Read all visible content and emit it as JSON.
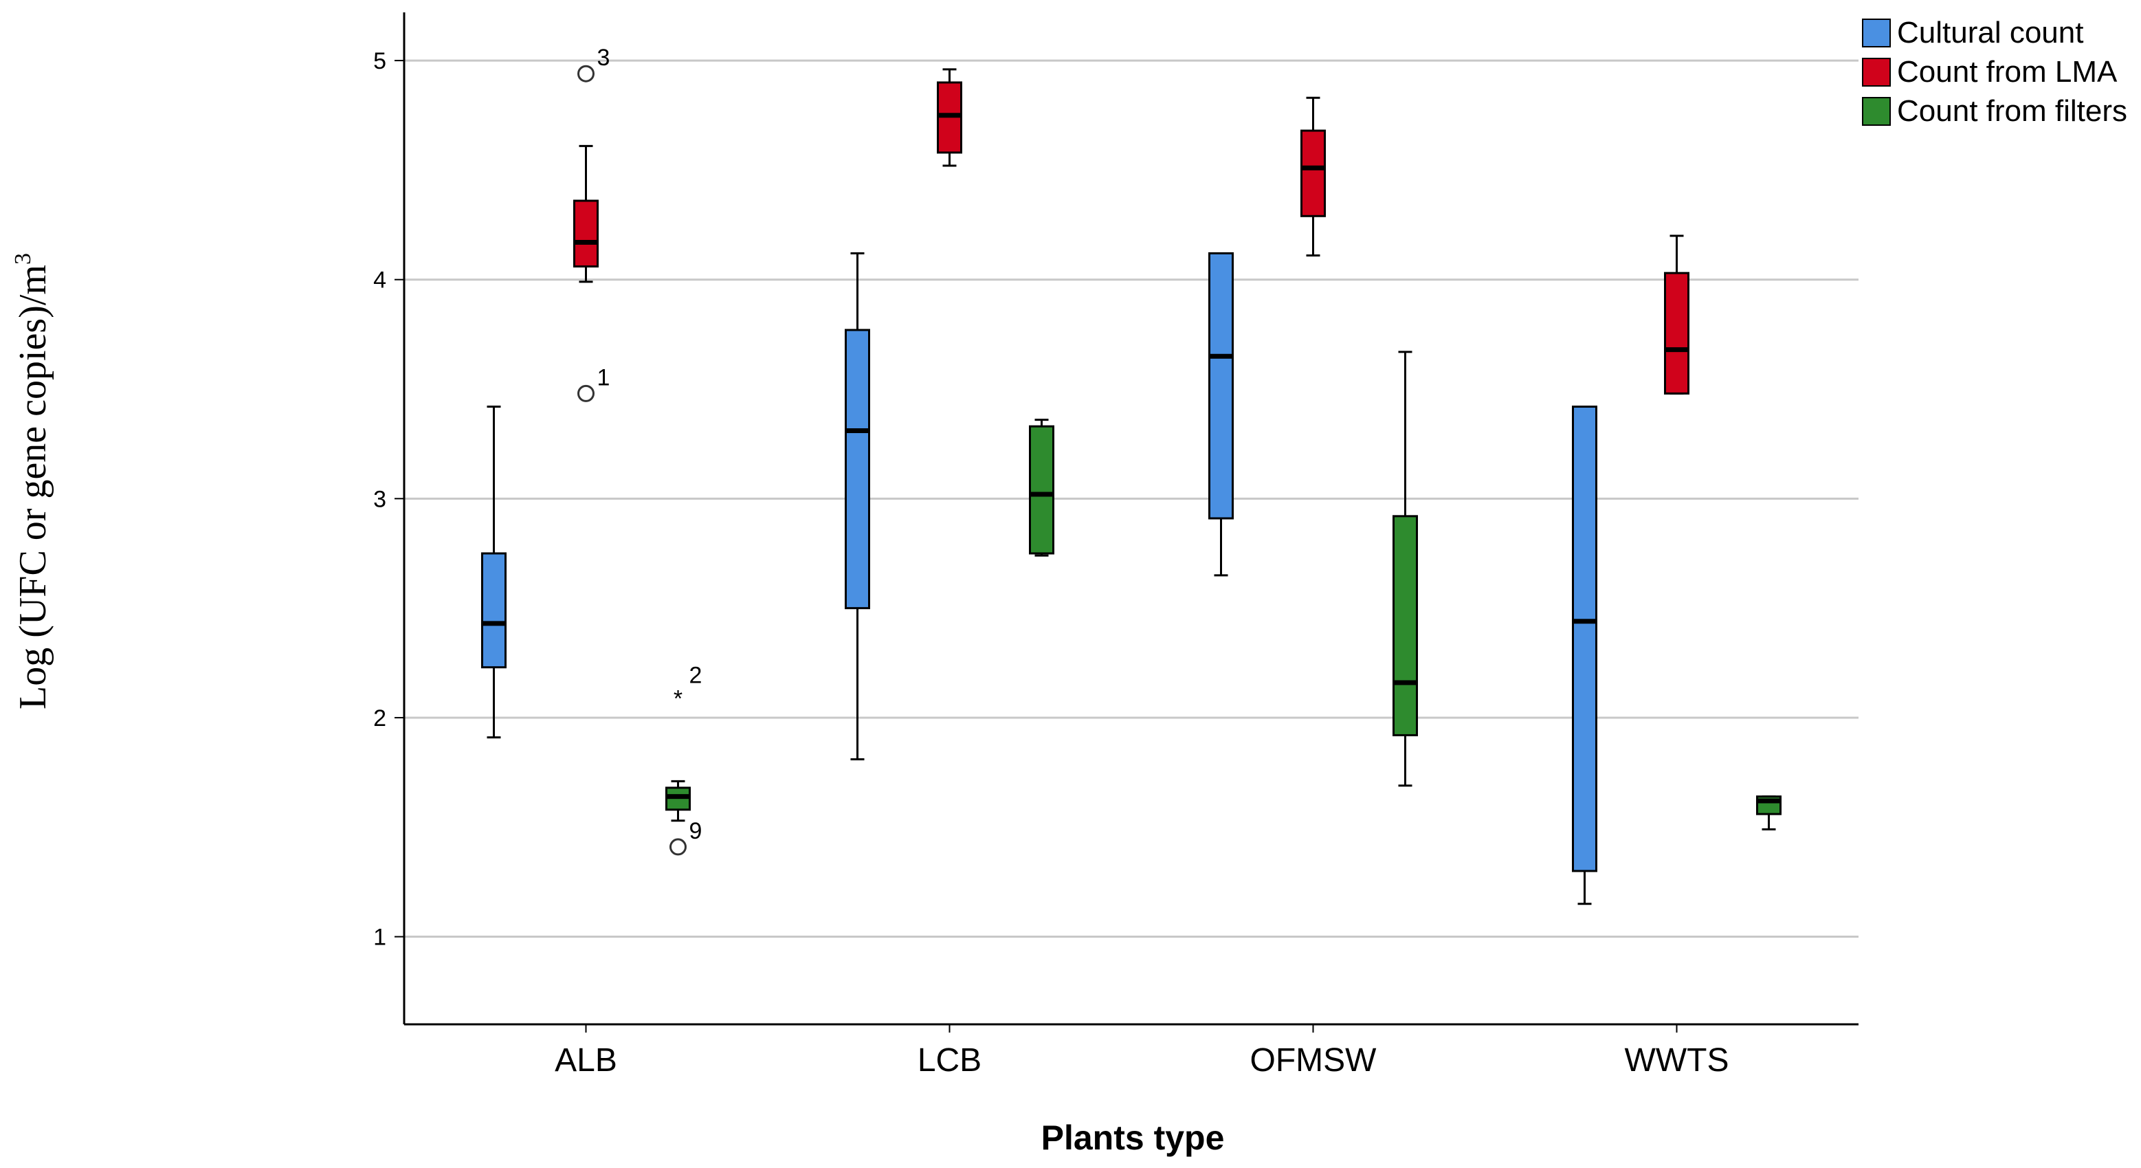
{
  "chart_data": {
    "type": "boxplot",
    "title": "",
    "xlabel": "Plants type",
    "ylabel": "Log (UFC or gene copies)/m",
    "ylabel_superscript": "3",
    "ylim": [
      0.6,
      5.22
    ],
    "yticks": [
      "1",
      "2",
      "3",
      "4",
      "5"
    ],
    "grid": true,
    "legend_position": "top-right",
    "categories": [
      "ALB",
      "LCB",
      "OFMSW",
      "WWTS"
    ],
    "series": [
      {
        "name": "Cultural count",
        "color": "#4a90e2",
        "boxes": [
          {
            "whisker_low": 1.91,
            "q1": 2.23,
            "median": 2.43,
            "q3": 2.75,
            "whisker_high": 3.42
          },
          {
            "whisker_low": 1.81,
            "q1": 2.5,
            "median": 3.31,
            "q3": 3.77,
            "whisker_high": 4.12
          },
          {
            "whisker_low": 2.65,
            "q1": 2.91,
            "median": 3.65,
            "q3": 4.12,
            "whisker_high": 4.12
          },
          {
            "whisker_low": 1.15,
            "q1": 1.3,
            "median": 2.44,
            "q3": 3.42,
            "whisker_high": 3.42
          }
        ]
      },
      {
        "name": "Count from LMA",
        "color": "#d0021b",
        "boxes": [
          {
            "whisker_low": 3.99,
            "q1": 4.06,
            "median": 4.17,
            "q3": 4.36,
            "whisker_high": 4.61
          },
          {
            "whisker_low": 4.52,
            "q1": 4.58,
            "median": 4.75,
            "q3": 4.9,
            "whisker_high": 4.96
          },
          {
            "whisker_low": 4.11,
            "q1": 4.29,
            "median": 4.51,
            "q3": 4.68,
            "whisker_high": 4.83
          },
          {
            "whisker_low": 3.48,
            "q1": 3.48,
            "median": 3.68,
            "q3": 4.03,
            "whisker_high": 4.2
          }
        ]
      },
      {
        "name": "Count from filters",
        "color": "#2e8b2e",
        "boxes": [
          {
            "whisker_low": 1.53,
            "q1": 1.58,
            "median": 1.64,
            "q3": 1.68,
            "whisker_high": 1.71
          },
          {
            "whisker_low": 2.74,
            "q1": 2.75,
            "median": 3.02,
            "q3": 3.33,
            "whisker_high": 3.36
          },
          {
            "whisker_low": 1.69,
            "q1": 1.92,
            "median": 2.16,
            "q3": 2.92,
            "whisker_high": 3.67
          },
          {
            "whisker_low": 1.49,
            "q1": 1.56,
            "median": 1.62,
            "q3": 1.64,
            "whisker_high": 1.64
          }
        ]
      }
    ],
    "outliers": [
      {
        "category": "ALB",
        "series": "Count from LMA",
        "value": 4.94,
        "marker": "circle",
        "label": "3"
      },
      {
        "category": "ALB",
        "series": "Count from LMA",
        "value": 3.48,
        "marker": "circle",
        "label": "1"
      },
      {
        "category": "ALB",
        "series": "Count from filters",
        "value": 2.12,
        "marker": "star",
        "label": "2"
      },
      {
        "category": "ALB",
        "series": "Count from filters",
        "value": 1.41,
        "marker": "circle",
        "label": "9"
      }
    ]
  }
}
